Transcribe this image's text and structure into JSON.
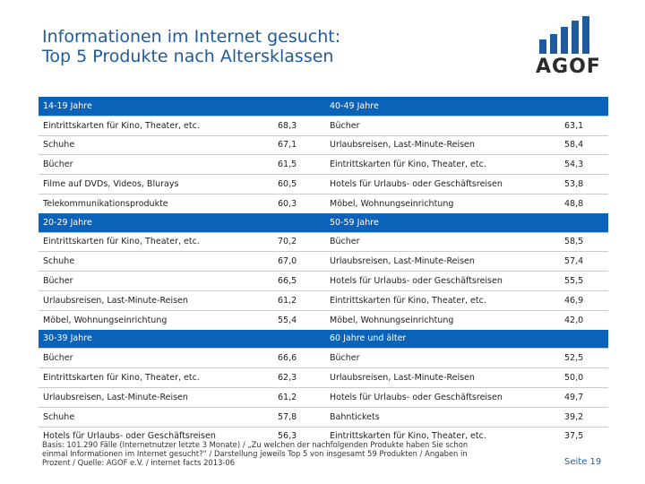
{
  "title": {
    "line1": "Informationen im Internet gesucht:",
    "line2": "Top 5 Produkte nach Altersklassen"
  },
  "logo": {
    "text": "AGOF",
    "icon": "bar-chart-logo-icon",
    "color": "#1f5b9c"
  },
  "accent_color": "#0a63b8",
  "sections": [
    {
      "left": {
        "header": "14-19 Jahre",
        "rows": [
          {
            "product": "Eintrittskarten für Kino, Theater, etc.",
            "value": "68,3"
          },
          {
            "product": "Schuhe",
            "value": "67,1"
          },
          {
            "product": "Bücher",
            "value": "61,5"
          },
          {
            "product": "Filme auf DVDs, Videos, Blurays",
            "value": "60,5"
          },
          {
            "product": "Telekommunikationsprodukte",
            "value": "60,3"
          }
        ]
      },
      "right": {
        "header": "40-49 Jahre",
        "rows": [
          {
            "product": "Bücher",
            "value": "63,1"
          },
          {
            "product": "Urlaubsreisen, Last-Minute-Reisen",
            "value": "58,4"
          },
          {
            "product": "Eintrittskarten für Kino, Theater, etc.",
            "value": "54,3"
          },
          {
            "product": "Hotels für Urlaubs- oder Geschäftsreisen",
            "value": "53,8"
          },
          {
            "product": "Möbel, Wohnungseinrichtung",
            "value": "48,8"
          }
        ]
      }
    },
    {
      "left": {
        "header": "20-29 Jahre",
        "rows": [
          {
            "product": "Eintrittskarten für Kino, Theater, etc.",
            "value": "70,2"
          },
          {
            "product": "Schuhe",
            "value": "67,0"
          },
          {
            "product": "Bücher",
            "value": "66,5"
          },
          {
            "product": "Urlaubsreisen, Last-Minute-Reisen",
            "value": "61,2"
          },
          {
            "product": "Möbel, Wohnungseinrichtung",
            "value": "55,4"
          }
        ]
      },
      "right": {
        "header": "50-59 Jahre",
        "rows": [
          {
            "product": "Bücher",
            "value": "58,5"
          },
          {
            "product": "Urlaubsreisen, Last-Minute-Reisen",
            "value": "57,4"
          },
          {
            "product": "Hotels für Urlaubs- oder Geschäftsreisen",
            "value": "55,5"
          },
          {
            "product": "Eintrittskarten für Kino, Theater, etc.",
            "value": "46,9"
          },
          {
            "product": "Möbel, Wohnungseinrichtung",
            "value": "42,0"
          }
        ]
      }
    },
    {
      "left": {
        "header": "30-39 Jahre",
        "rows": [
          {
            "product": "Bücher",
            "value": "66,6"
          },
          {
            "product": "Eintrittskarten für Kino, Theater, etc.",
            "value": "62,3"
          },
          {
            "product": "Urlaubsreisen, Last-Minute-Reisen",
            "value": "61,2"
          },
          {
            "product": "Schuhe",
            "value": "57,8"
          },
          {
            "product": "Hotels für Urlaubs- oder Geschäftsreisen",
            "value": "56,3"
          }
        ]
      },
      "right": {
        "header": "60 Jahre und älter",
        "rows": [
          {
            "product": "Bücher",
            "value": "52,5"
          },
          {
            "product": "Urlaubsreisen, Last-Minute-Reisen",
            "value": "50,0"
          },
          {
            "product": "Hotels für Urlaubs- oder Geschäftsreisen",
            "value": "49,7"
          },
          {
            "product": "Bahntickets",
            "value": "39,2"
          },
          {
            "product": "Eintrittskarten für Kino, Theater, etc.",
            "value": "37,5"
          }
        ]
      }
    }
  ],
  "footer": {
    "line1": "Basis: 101.290 Fälle (Internetnutzer letzte 3 Monate) / „Zu welchen der nachfolgenden Produkte haben Sie schon",
    "line2": "einmal Informationen im Internet gesucht?“ / Darstellung jeweils Top 5 von insgesamt 59 Produkten / Angaben in",
    "line3": "Prozent / Quelle: AGOF e.V. / internet facts 2013-06"
  },
  "page_label": "Seite 19"
}
